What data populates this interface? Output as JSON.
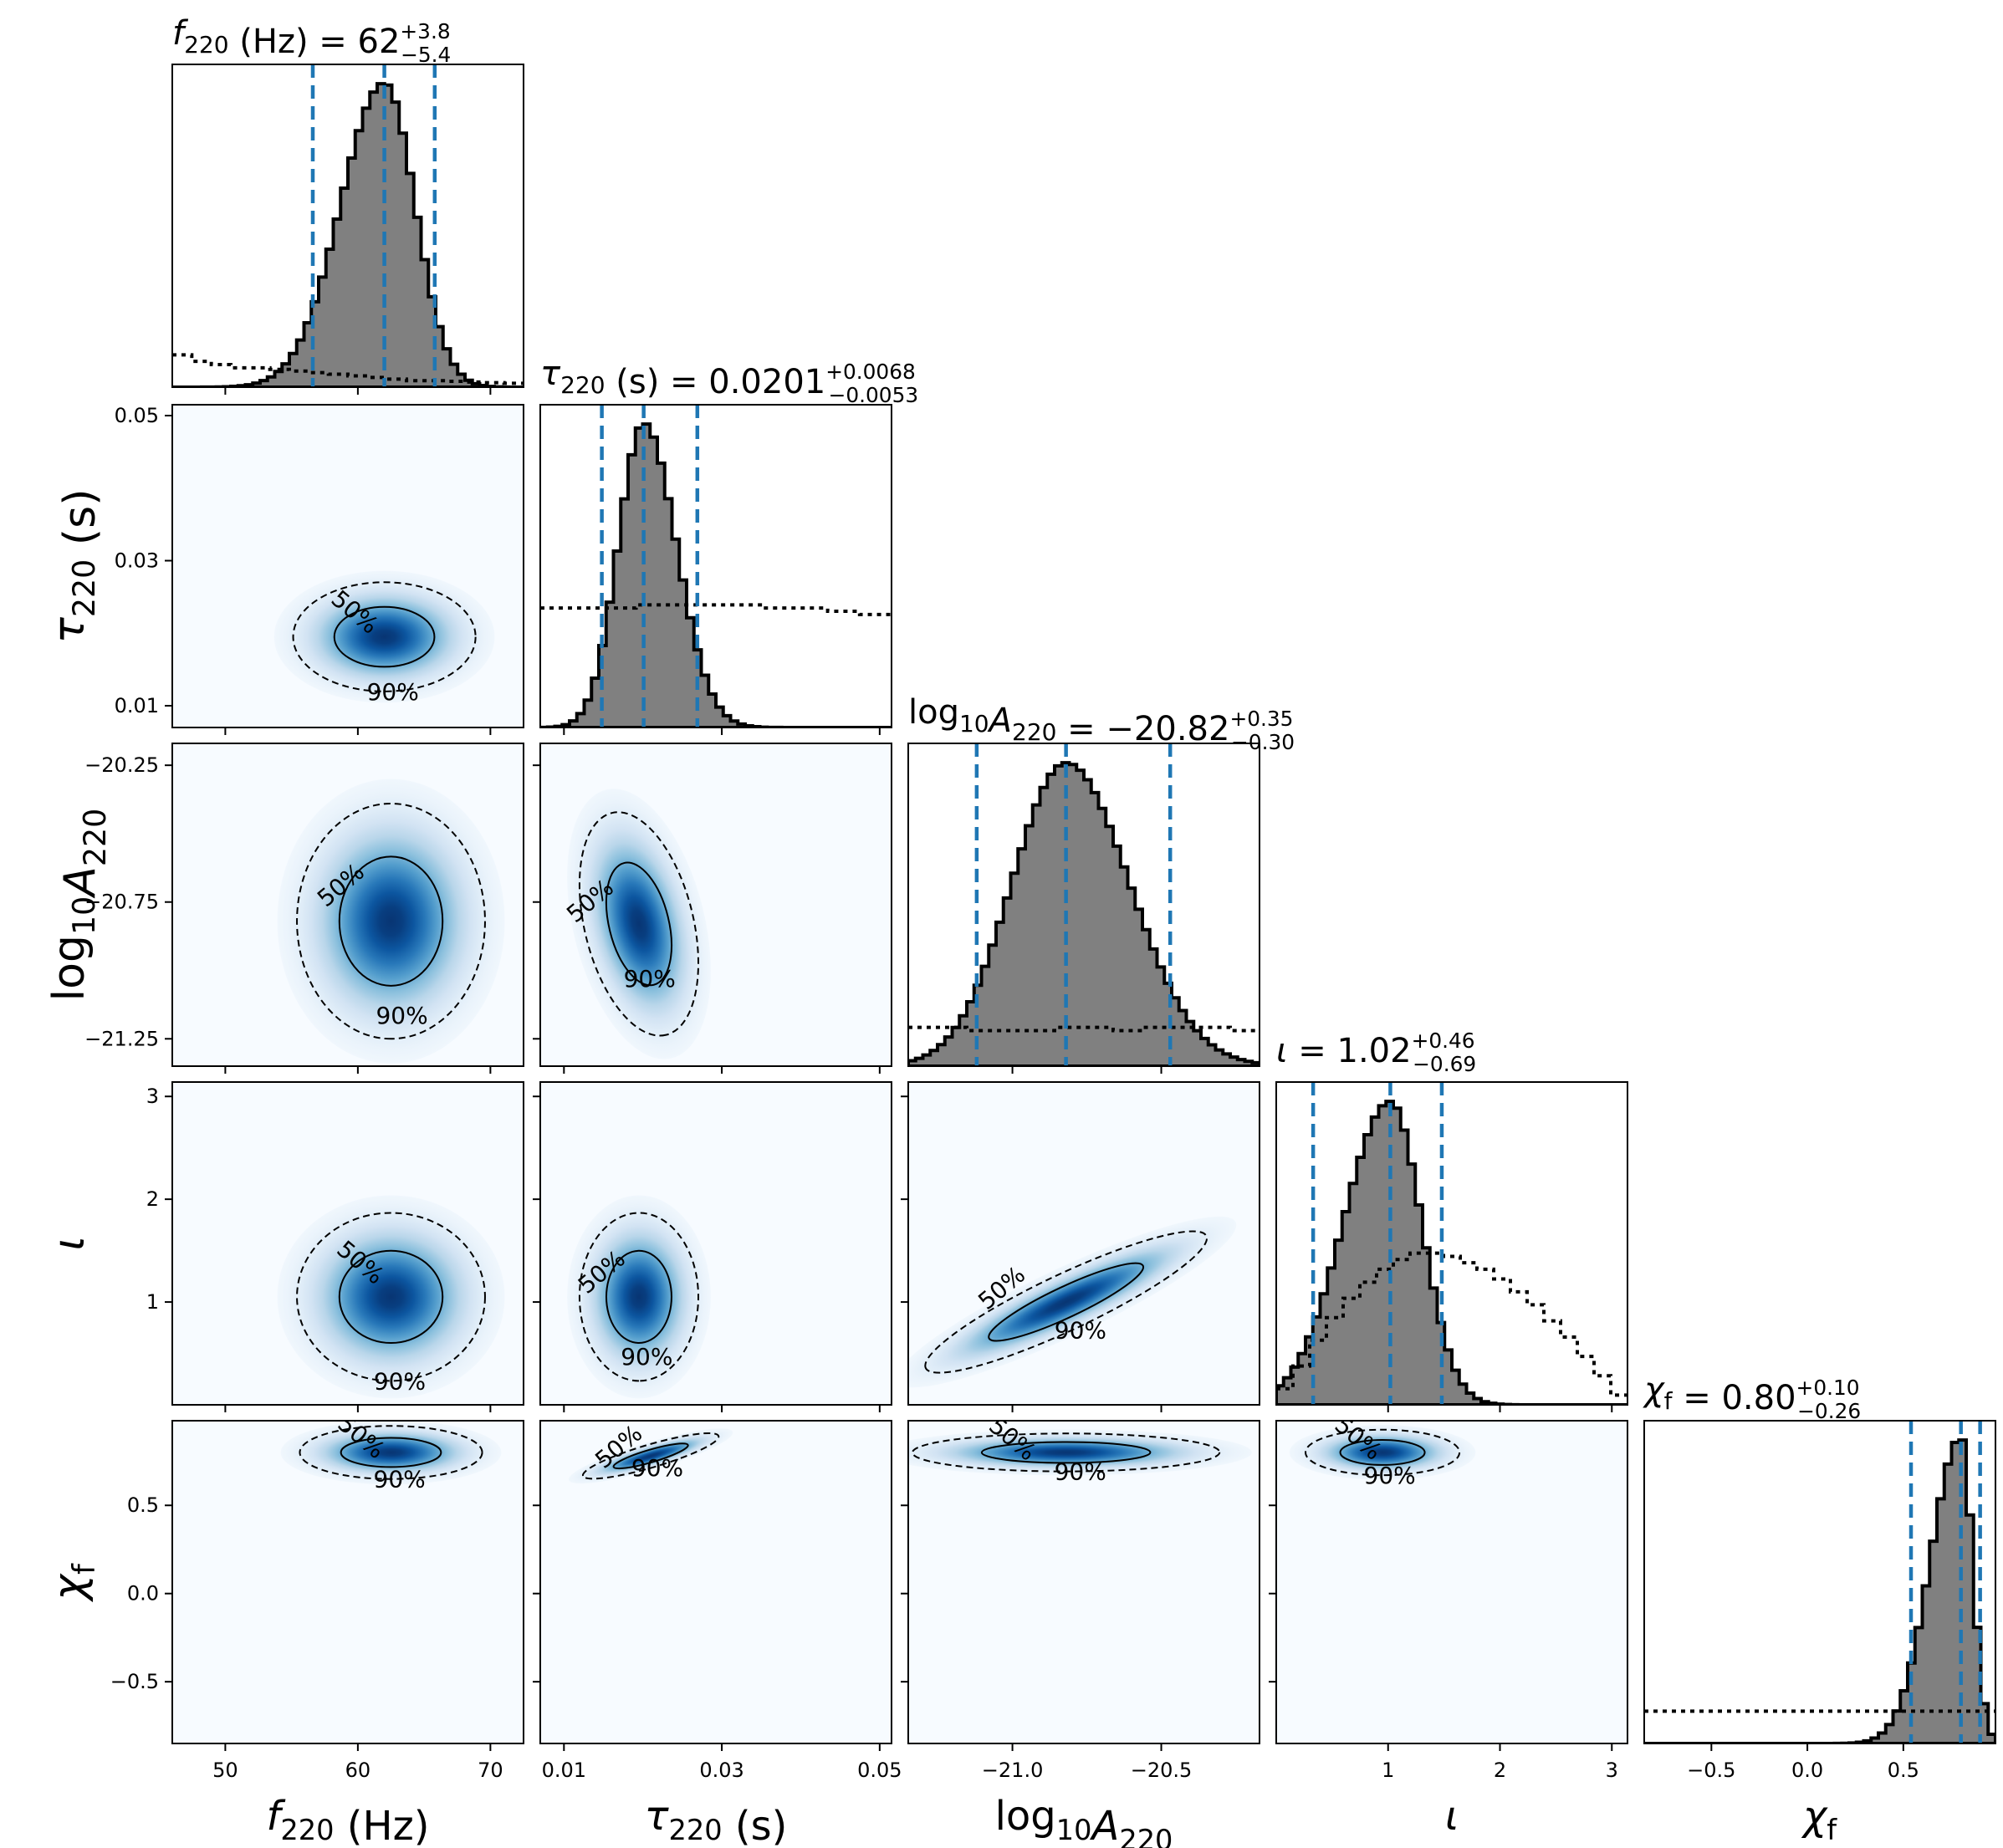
{
  "chart_data": {
    "type": "corner",
    "parameters": [
      {
        "id": "f",
        "label": "f220 (Hz)",
        "range": [
          46,
          72.5
        ],
        "ticks": [
          50,
          60,
          70
        ],
        "tick_labels": [
          "50",
          "60",
          "70"
        ],
        "median": 62,
        "plus": "+3.8",
        "minus": "−5.4",
        "lo": 56.6,
        "hi": 65.8,
        "title_main": "(Hz) = 62",
        "prior": [
          0.1,
          0.08,
          0.07,
          0.06,
          0.06,
          0.055,
          0.05,
          0.045,
          0.04,
          0.035,
          0.03,
          0.025,
          0.02,
          0.02,
          0.018,
          0.016,
          0.014,
          0.012
        ]
      },
      {
        "id": "tau",
        "label": "τ220 (s)",
        "range": [
          0.007,
          0.0515
        ],
        "ticks": [
          0.01,
          0.03,
          0.05
        ],
        "tick_labels": [
          "0.01",
          "0.03",
          "0.05"
        ],
        "median": 0.0201,
        "plus": "+0.0068",
        "minus": "−0.0053",
        "lo": 0.0148,
        "hi": 0.0269,
        "title_main": "(s) = 0.0201",
        "prior": [
          0.37,
          0.37,
          0.37,
          0.38,
          0.38,
          0.38,
          0.38,
          0.37,
          0.37,
          0.36,
          0.35
        ]
      },
      {
        "id": "logA",
        "label": "log10A220",
        "range": [
          -21.35,
          -20.17
        ],
        "ticks": [
          -21.25,
          -20.75,
          -20.25
        ],
        "tick_labels": [
          "−21.25",
          "−20.75",
          "−20.25"
        ],
        "xticks": [
          -21.0,
          -20.5
        ],
        "xtick_labels": [
          "−21.0",
          "−20.5"
        ],
        "median": -20.82,
        "plus": "+0.35",
        "minus": "−0.30",
        "lo": -21.12,
        "hi": -20.47,
        "title_main": "= −20.82",
        "prior": [
          0.12,
          0.12,
          0.11,
          0.11,
          0.11,
          0.12,
          0.12,
          0.11,
          0.12,
          0.12,
          0.12,
          0.11
        ]
      },
      {
        "id": "iota",
        "label": "ι",
        "range": [
          0.0,
          3.14
        ],
        "ticks": [
          1,
          2,
          3
        ],
        "tick_labels": [
          "1",
          "2",
          "3"
        ],
        "median": 1.02,
        "plus": "+0.46",
        "minus": "−0.69",
        "lo": 0.33,
        "hi": 1.48,
        "title_main": "= 1.02",
        "prior": [
          0.05,
          0.12,
          0.2,
          0.27,
          0.33,
          0.38,
          0.42,
          0.45,
          0.47,
          0.47,
          0.46,
          0.44,
          0.42,
          0.39,
          0.35,
          0.31,
          0.26,
          0.21,
          0.15,
          0.09,
          0.03
        ]
      },
      {
        "id": "chi",
        "label": "χf",
        "range": [
          -0.85,
          0.98
        ],
        "ticks": [
          -0.5,
          0.0,
          0.5
        ],
        "tick_labels": [
          "−0.5",
          "0.0",
          "0.5"
        ],
        "median": 0.8,
        "plus": "+0.10",
        "minus": "−0.26",
        "lo": 0.54,
        "hi": 0.9,
        "title_main": "= 0.80",
        "prior": [
          0.1,
          0.1,
          0.1,
          0.1,
          0.1,
          0.1,
          0.1,
          0.1,
          0.1,
          0.1,
          0.1
        ]
      }
    ],
    "titles": {
      "f": {
        "sym": "f",
        "sub": "220",
        "rest": "(Hz) = 62",
        "plus": "+3.8",
        "minus": "−5.4"
      },
      "tau": {
        "sym": "τ",
        "sub": "220",
        "rest": "(s) = 0.0201",
        "plus": "+0.0068",
        "minus": "−0.0053"
      },
      "logA": {
        "pre": "log",
        "presub": "10",
        "sym": "A",
        "sub": "220",
        "rest": "= −20.82",
        "plus": "+0.35",
        "minus": "−0.30"
      },
      "iota": {
        "sym": "ι",
        "rest": "= 1.02",
        "plus": "+0.46",
        "minus": "−0.69"
      },
      "chi": {
        "sym": "χ",
        "sub": "f",
        "rest": "= 0.80",
        "plus": "+0.10",
        "minus": "−0.26"
      }
    },
    "axis_labels": {
      "f": {
        "sym": "f",
        "sub": "220",
        "rest": " (Hz)"
      },
      "tau": {
        "sym": "τ",
        "sub": "220",
        "rest": " (s)"
      },
      "logA": {
        "pre": "log",
        "presub": "10",
        "sym": "A",
        "sub": "220",
        "rest": ""
      },
      "iota": {
        "sym": "ι",
        "sub": "",
        "rest": ""
      },
      "chi": {
        "sym": "χ",
        "sub": "f",
        "rest": ""
      }
    },
    "contour_labels": [
      "50%",
      "90%"
    ],
    "pairs": [
      {
        "x": "f",
        "y": "tau",
        "mx": 62,
        "my": 0.0195,
        "sx": 3.2,
        "sy": 0.0035,
        "rho": 0.0
      },
      {
        "x": "f",
        "y": "logA",
        "mx": 62.5,
        "my": -20.82,
        "sx": 3.3,
        "sy": 0.2,
        "rho": 0.0
      },
      {
        "x": "tau",
        "y": "logA",
        "mx": 0.0195,
        "my": -20.83,
        "sx": 0.0035,
        "sy": 0.19,
        "rho": -0.35
      },
      {
        "x": "f",
        "y": "iota",
        "mx": 62.5,
        "my": 1.05,
        "sx": 3.3,
        "sy": 0.38,
        "rho": 0.0
      },
      {
        "x": "tau",
        "y": "iota",
        "mx": 0.0195,
        "my": 1.05,
        "sx": 0.0035,
        "sy": 0.38,
        "rho": 0.0
      },
      {
        "x": "logA",
        "y": "iota",
        "mx": -20.82,
        "my": 1.0,
        "sx": 0.22,
        "sy": 0.32,
        "rho": 0.9
      },
      {
        "x": "f",
        "y": "chi",
        "mx": 62.5,
        "my": 0.8,
        "sx": 3.2,
        "sy": 0.07,
        "rho": 0.0
      },
      {
        "x": "tau",
        "y": "chi",
        "mx": 0.021,
        "my": 0.78,
        "sx": 0.004,
        "sy": 0.06,
        "rho": 0.85
      },
      {
        "x": "logA",
        "y": "chi",
        "mx": -20.82,
        "my": 0.8,
        "sx": 0.24,
        "sy": 0.05,
        "rho": 0.0
      },
      {
        "x": "iota",
        "y": "chi",
        "mx": 0.95,
        "my": 0.8,
        "sx": 0.32,
        "sy": 0.06,
        "rho": 0.0
      }
    ],
    "colors": {
      "hist_fill": "#808080",
      "hist_edge": "#000000",
      "quantile": "#1f77b4",
      "density_dark": "#08306b",
      "density_light": "#f7fbff"
    }
  }
}
